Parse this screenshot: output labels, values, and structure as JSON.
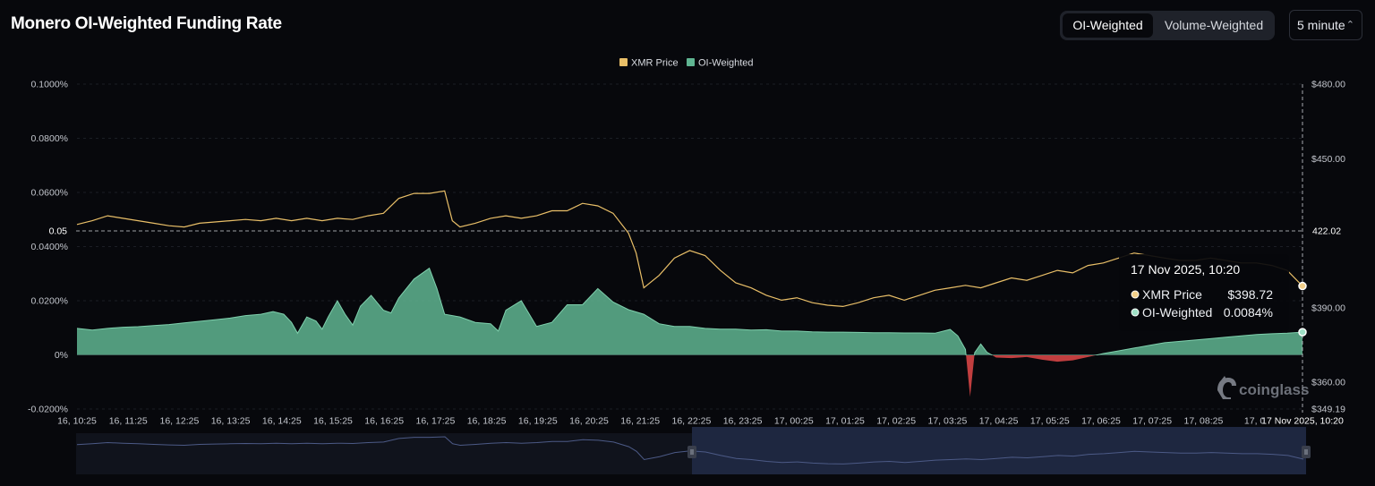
{
  "header": {
    "title": "Monero OI-Weighted Funding Rate",
    "toggle": [
      {
        "label": "OI-Weighted",
        "active": true
      },
      {
        "label": "Volume-Weighted",
        "active": false
      }
    ],
    "interval": "5 minute"
  },
  "colors": {
    "background": "#07080c",
    "price": "#e9bf68",
    "positive": "#5fb592",
    "negative": "#d64545",
    "navigator": "#1a2238"
  },
  "icons": [
    "coinglass-logo-icon",
    "chevron-updown-icon",
    "navigator-handle-icon"
  ],
  "watermark": "coinglass",
  "chart_data": {
    "type": "area",
    "legend": [
      {
        "name": "XMR Price",
        "color": "#e9bf68"
      },
      {
        "name": "OI-Weighted",
        "color": "#5fb592"
      }
    ],
    "legend_position": "top-center",
    "x_ticks": [
      "16, 10:25",
      "16, 11:25",
      "16, 12:25",
      "16, 13:25",
      "16, 14:25",
      "16, 15:25",
      "16, 16:25",
      "16, 17:25",
      "16, 18:25",
      "16, 19:25",
      "16, 20:25",
      "16, 21:25",
      "16, 22:25",
      "16, 23:25",
      "17, 00:25",
      "17, 01:25",
      "17, 02:25",
      "17, 03:25",
      "17, 04:25",
      "17, 05:25",
      "17, 06:25",
      "17, 07:25",
      "17, 08:25",
      "17, 0"
    ],
    "y_left": {
      "ticks": [
        "0.1000%",
        "0.0800%",
        "0.0600%",
        "0.0400%",
        "0.0200%",
        "0%",
        "-0.0200%"
      ],
      "ylim": [
        -0.02,
        0.1
      ],
      "unit": "%"
    },
    "y_right": {
      "ticks": [
        "$480.00",
        "$450.00",
        "$390.00",
        "$360.00",
        "$349.19"
      ],
      "ylim": [
        349.19,
        480.0
      ]
    },
    "crosshair": {
      "left_label": "0.05",
      "right_label": "422.02",
      "x_label": "17 Nov 2025, 10:20"
    },
    "tooltip": {
      "title": "17 Nov 2025, 10:20",
      "rows": [
        {
          "name": "XMR Price",
          "value": "$398.72"
        },
        {
          "name": "OI-Weighted",
          "value": "0.0084%"
        }
      ]
    },
    "series": [
      {
        "name": "OI-Weighted",
        "axis": "left",
        "points": [
          [
            0,
            0.0098
          ],
          [
            1,
            0.0092
          ],
          [
            2,
            0.0098
          ],
          [
            3,
            0.0102
          ],
          [
            4,
            0.0104
          ],
          [
            5,
            0.0108
          ],
          [
            6,
            0.0112
          ],
          [
            7,
            0.0118
          ],
          [
            8,
            0.0124
          ],
          [
            9,
            0.013
          ],
          [
            10,
            0.0136
          ],
          [
            11,
            0.0145
          ],
          [
            12,
            0.015
          ],
          [
            12.8,
            0.016
          ],
          [
            13.5,
            0.015
          ],
          [
            14,
            0.012
          ],
          [
            14.4,
            0.008
          ],
          [
            15,
            0.014
          ],
          [
            15.6,
            0.0125
          ],
          [
            16,
            0.0095
          ],
          [
            16.4,
            0.014
          ],
          [
            17,
            0.02
          ],
          [
            17.5,
            0.015
          ],
          [
            18,
            0.011
          ],
          [
            18.5,
            0.018
          ],
          [
            19.2,
            0.022
          ],
          [
            20,
            0.0165
          ],
          [
            20.5,
            0.0155
          ],
          [
            21,
            0.021
          ],
          [
            22,
            0.028
          ],
          [
            23,
            0.032
          ],
          [
            23.5,
            0.0245
          ],
          [
            24,
            0.015
          ],
          [
            25,
            0.014
          ],
          [
            26,
            0.012
          ],
          [
            27,
            0.0115
          ],
          [
            27.5,
            0.0088
          ],
          [
            28,
            0.0165
          ],
          [
            29,
            0.02
          ],
          [
            30,
            0.0105
          ],
          [
            31,
            0.012
          ],
          [
            32,
            0.0185
          ],
          [
            33,
            0.0185
          ],
          [
            34,
            0.0245
          ],
          [
            35,
            0.0195
          ],
          [
            36,
            0.0167
          ],
          [
            37,
            0.015
          ],
          [
            38,
            0.0115
          ],
          [
            39,
            0.0105
          ],
          [
            40,
            0.0105
          ],
          [
            41,
            0.0098
          ],
          [
            42,
            0.0095
          ],
          [
            43,
            0.0095
          ],
          [
            44,
            0.0092
          ],
          [
            45,
            0.0093
          ],
          [
            46,
            0.0088
          ],
          [
            47,
            0.0088
          ],
          [
            48,
            0.0085
          ],
          [
            49,
            0.0084
          ],
          [
            50,
            0.0084
          ],
          [
            51,
            0.0083
          ],
          [
            52,
            0.0082
          ],
          [
            53,
            0.0082
          ],
          [
            54,
            0.0081
          ],
          [
            55,
            0.0081
          ],
          [
            56,
            0.008
          ],
          [
            57,
            0.0094
          ],
          [
            57.5,
            0.007
          ],
          [
            58,
            0.002
          ],
          [
            58.3,
            -0.0155
          ],
          [
            58.6,
            0.0008
          ],
          [
            59,
            0.004
          ],
          [
            59.4,
            0.001
          ],
          [
            60,
            -0.001
          ],
          [
            61,
            -0.0012
          ],
          [
            62,
            -0.0008
          ],
          [
            63,
            -0.0018
          ],
          [
            64,
            -0.0025
          ],
          [
            65,
            -0.002
          ],
          [
            66,
            -0.0008
          ],
          [
            67,
            0.0005
          ],
          [
            68,
            0.0015
          ],
          [
            69,
            0.0025
          ],
          [
            70,
            0.0035
          ],
          [
            71,
            0.0045
          ],
          [
            72,
            0.005
          ],
          [
            73,
            0.0055
          ],
          [
            74,
            0.006
          ],
          [
            75,
            0.0065
          ],
          [
            76,
            0.007
          ],
          [
            77,
            0.0075
          ],
          [
            78,
            0.0078
          ],
          [
            79,
            0.008
          ],
          [
            80,
            0.0084
          ]
        ]
      },
      {
        "name": "XMR Price",
        "axis": "right",
        "points": [
          [
            0,
            423.5
          ],
          [
            1,
            425
          ],
          [
            2,
            427
          ],
          [
            3,
            426
          ],
          [
            4,
            425
          ],
          [
            5,
            424
          ],
          [
            6,
            423
          ],
          [
            7,
            422.5
          ],
          [
            8,
            424
          ],
          [
            9,
            424.5
          ],
          [
            10,
            425
          ],
          [
            11,
            425.5
          ],
          [
            12,
            425
          ],
          [
            13,
            426
          ],
          [
            14,
            425
          ],
          [
            15,
            426
          ],
          [
            16,
            425
          ],
          [
            17,
            426
          ],
          [
            18,
            425.5
          ],
          [
            19,
            427
          ],
          [
            20,
            428
          ],
          [
            21,
            434
          ],
          [
            22,
            436
          ],
          [
            23,
            436
          ],
          [
            24,
            437
          ],
          [
            24.5,
            425
          ],
          [
            25,
            422.5
          ],
          [
            26,
            424
          ],
          [
            27,
            426
          ],
          [
            28,
            427
          ],
          [
            29,
            426
          ],
          [
            30,
            427
          ],
          [
            31,
            429
          ],
          [
            32,
            429
          ],
          [
            33,
            432
          ],
          [
            34,
            431
          ],
          [
            35,
            428
          ],
          [
            36,
            420
          ],
          [
            36.5,
            412
          ],
          [
            37,
            398
          ],
          [
            38,
            403
          ],
          [
            39,
            410
          ],
          [
            40,
            413
          ],
          [
            41,
            411
          ],
          [
            42,
            405
          ],
          [
            43,
            400
          ],
          [
            44,
            398
          ],
          [
            45,
            395
          ],
          [
            46,
            393
          ],
          [
            47,
            394
          ],
          [
            48,
            392
          ],
          [
            49,
            391
          ],
          [
            50,
            390.5
          ],
          [
            51,
            392
          ],
          [
            52,
            394
          ],
          [
            53,
            395
          ],
          [
            54,
            393
          ],
          [
            55,
            395
          ],
          [
            56,
            397
          ],
          [
            57,
            398
          ],
          [
            58,
            399
          ],
          [
            59,
            398
          ],
          [
            60,
            400
          ],
          [
            61,
            402
          ],
          [
            62,
            401
          ],
          [
            63,
            403
          ],
          [
            64,
            405
          ],
          [
            65,
            404
          ],
          [
            66,
            407
          ],
          [
            67,
            408
          ],
          [
            68,
            410
          ],
          [
            69,
            412
          ],
          [
            70,
            411
          ],
          [
            71,
            410
          ],
          [
            72,
            409
          ],
          [
            73,
            409
          ],
          [
            74,
            410
          ],
          [
            75,
            409
          ],
          [
            76,
            408
          ],
          [
            77,
            408
          ],
          [
            78,
            407
          ],
          [
            79,
            405
          ],
          [
            80,
            398.72
          ]
        ]
      }
    ]
  }
}
